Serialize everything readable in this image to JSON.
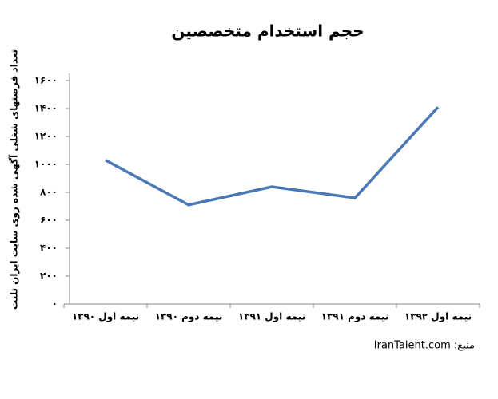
{
  "chart_data": {
    "type": "line",
    "title": "حجم استخدام متخصصین",
    "y_label": "تعداد فرصتهای شغلی آگهی شده روی سایت ایران تلنت",
    "source": "منبع: IranTalent.com",
    "categories": [
      "نیمه اول ۱۳۹۰",
      "نیمه دوم ۱۳۹۰",
      "نیمه اول ۱۳۹۱",
      "نیمه دوم ۱۳۹۱",
      "نیمه اول ۱۳۹۲"
    ],
    "values": [
      1030,
      710,
      840,
      760,
      1410
    ],
    "color": "#4a78b4",
    "ylim": [
      0,
      1600
    ],
    "yticks": [
      {
        "value": 0,
        "label": "۰"
      },
      {
        "value": 200,
        "label": "۲۰۰"
      },
      {
        "value": 400,
        "label": "۴۰۰"
      },
      {
        "value": 600,
        "label": "۶۰۰"
      },
      {
        "value": 800,
        "label": "۸۰۰"
      },
      {
        "value": 1000,
        "label": "۱۰۰۰"
      },
      {
        "value": 1200,
        "label": "۱۲۰۰"
      },
      {
        "value": 1400,
        "label": "۱۴۰۰"
      },
      {
        "value": 1600,
        "label": "۱۶۰۰"
      }
    ]
  }
}
